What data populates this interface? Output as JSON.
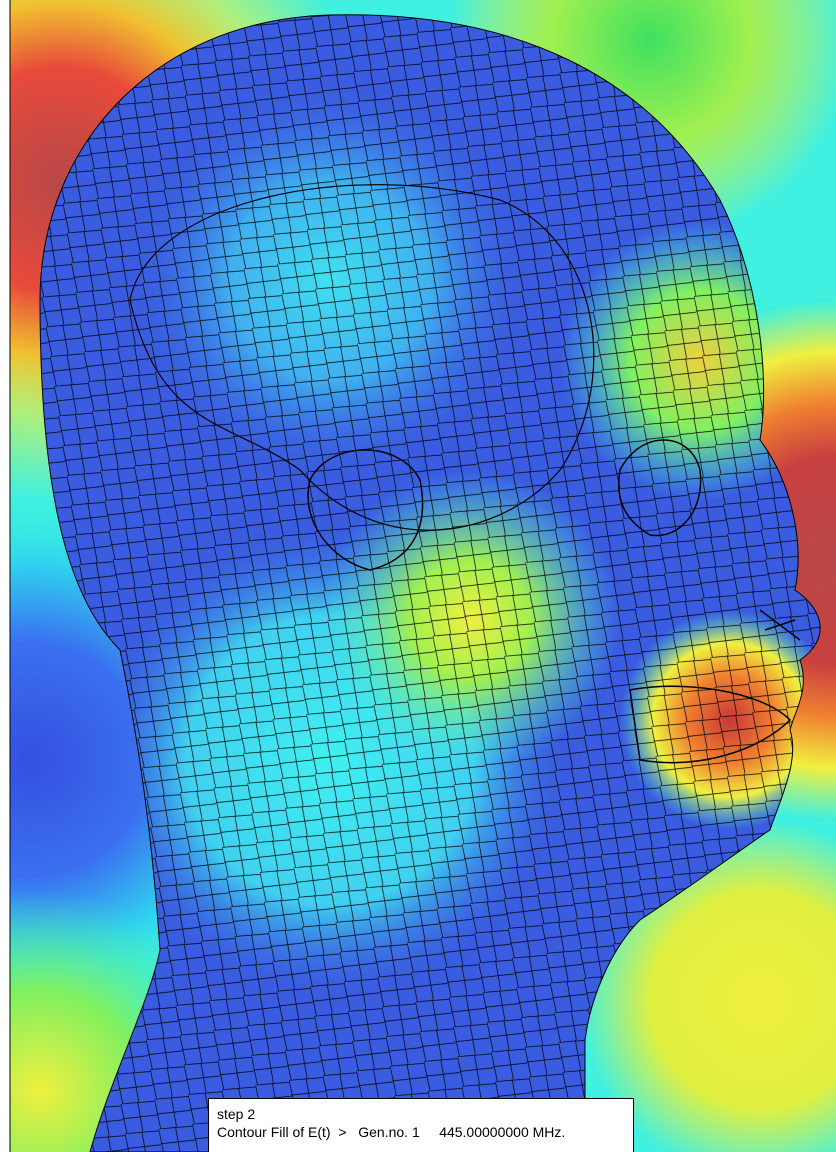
{
  "caption": {
    "step": "step 2",
    "description": "Contour Fill of E(t)",
    "separator": ">",
    "generator": "Gen.no. 1",
    "frequency": "445.00000000 MHz."
  }
}
